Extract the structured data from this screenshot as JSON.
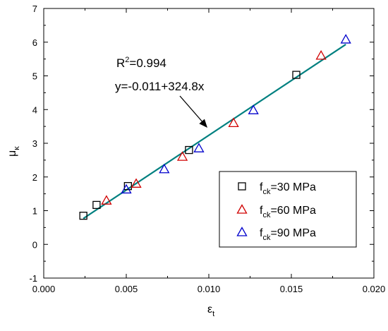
{
  "chart_data": {
    "type": "scatter",
    "xlabel": "ε",
    "xlabel_sub": "t",
    "ylabel": "μ",
    "ylabel_sub": "κ",
    "xlim": [
      0.0,
      0.02
    ],
    "ylim": [
      -1,
      7
    ],
    "x_ticks": [
      "0.000",
      "0.005",
      "0.010",
      "0.015",
      "0.020"
    ],
    "y_ticks": [
      "-1",
      "0",
      "1",
      "2",
      "3",
      "4",
      "5",
      "6",
      "7"
    ],
    "grid": false,
    "legend_position": "bottom-right",
    "annotation": {
      "r2_prefix": "R",
      "r2_exp": "2",
      "r2_value": "=0.994",
      "equation": "y=-0.011+324.8x"
    },
    "fit_line": {
      "intercept": -0.011,
      "slope": 324.8,
      "x_range": [
        0.0024,
        0.0183
      ],
      "color": "#008080"
    },
    "series": [
      {
        "name_main": "f",
        "name_sub": "ck",
        "name_rest": "=30 MPa",
        "marker": "square",
        "color": "#000000",
        "points": [
          [
            0.0024,
            0.85
          ],
          [
            0.0032,
            1.17
          ],
          [
            0.0051,
            1.73
          ],
          [
            0.0088,
            2.8
          ],
          [
            0.0153,
            5.03
          ]
        ]
      },
      {
        "name_main": "f",
        "name_sub": "ck",
        "name_rest": "=60 MPa",
        "marker": "triangle",
        "color": "#d00000",
        "points": [
          [
            0.0038,
            1.3
          ],
          [
            0.0056,
            1.8
          ],
          [
            0.0084,
            2.6
          ],
          [
            0.0115,
            3.6
          ],
          [
            0.0168,
            5.6
          ]
        ]
      },
      {
        "name_main": "f",
        "name_sub": "ck",
        "name_rest": "=90 MPa",
        "marker": "triangle",
        "color": "#0000cc",
        "points": [
          [
            0.005,
            1.63
          ],
          [
            0.0073,
            2.23
          ],
          [
            0.0094,
            2.85
          ],
          [
            0.0127,
            3.98
          ],
          [
            0.0183,
            6.08
          ]
        ]
      }
    ]
  }
}
